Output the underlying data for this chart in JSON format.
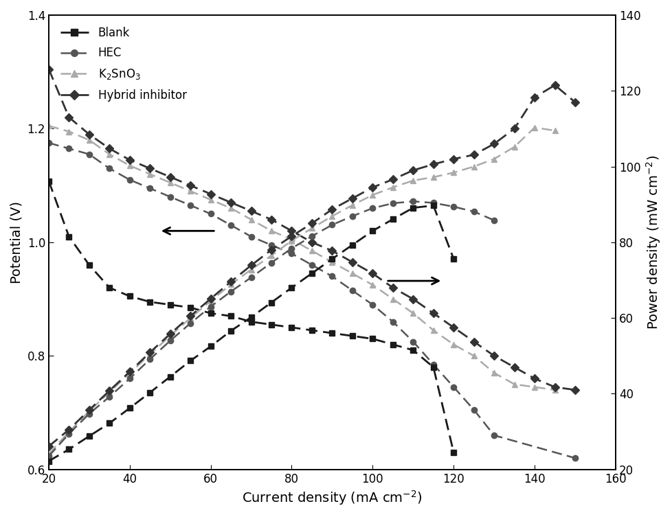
{
  "x": [
    20,
    25,
    30,
    35,
    40,
    45,
    50,
    55,
    60,
    65,
    70,
    75,
    80,
    85,
    90,
    95,
    100,
    105,
    110,
    115,
    120
  ],
  "blank_V": [
    1.108,
    1.01,
    0.96,
    0.92,
    0.905,
    0.895,
    0.89,
    0.885,
    0.875,
    0.87,
    0.86,
    0.855,
    0.85,
    0.845,
    0.84,
    0.835,
    0.83,
    0.82,
    0.81,
    0.78,
    0.63
  ],
  "x_hec": [
    20,
    25,
    30,
    35,
    40,
    45,
    50,
    55,
    60,
    65,
    70,
    75,
    80,
    85,
    90,
    95,
    100,
    105,
    110,
    115,
    120,
    125,
    130,
    150
  ],
  "hec_V": [
    1.175,
    1.165,
    1.155,
    1.13,
    1.11,
    1.095,
    1.08,
    1.065,
    1.05,
    1.03,
    1.01,
    0.995,
    0.98,
    0.96,
    0.94,
    0.915,
    0.89,
    0.86,
    0.825,
    0.785,
    0.745,
    0.705,
    0.66,
    0.62
  ],
  "x_k2sno3": [
    20,
    25,
    30,
    35,
    40,
    45,
    50,
    55,
    60,
    65,
    70,
    75,
    80,
    85,
    90,
    95,
    100,
    105,
    110,
    115,
    120,
    125,
    130,
    135,
    140,
    145
  ],
  "k2sno3_V": [
    1.205,
    1.195,
    1.18,
    1.155,
    1.135,
    1.12,
    1.105,
    1.09,
    1.075,
    1.06,
    1.04,
    1.02,
    1.005,
    0.985,
    0.965,
    0.945,
    0.925,
    0.9,
    0.875,
    0.845,
    0.82,
    0.8,
    0.77,
    0.75,
    0.745,
    0.74
  ],
  "x_hybrid": [
    20,
    25,
    30,
    35,
    40,
    45,
    50,
    55,
    60,
    65,
    70,
    75,
    80,
    85,
    90,
    95,
    100,
    105,
    110,
    115,
    120,
    125,
    130,
    135,
    140,
    145,
    150
  ],
  "hybrid_V": [
    1.305,
    1.22,
    1.19,
    1.165,
    1.145,
    1.13,
    1.115,
    1.1,
    1.085,
    1.07,
    1.055,
    1.04,
    1.02,
    1.0,
    0.985,
    0.965,
    0.945,
    0.92,
    0.9,
    0.875,
    0.85,
    0.825,
    0.8,
    0.78,
    0.76,
    0.745,
    0.74
  ],
  "x_blank_P": [
    20,
    25,
    30,
    35,
    40,
    45,
    50,
    55,
    60,
    65,
    70,
    75,
    80,
    85,
    90,
    95,
    100,
    105,
    110,
    115,
    120
  ],
  "blank_P_vals": [
    22.2,
    25.3,
    28.8,
    32.2,
    36.2,
    40.3,
    44.5,
    48.7,
    52.5,
    56.6,
    60.2,
    64.1,
    68.0,
    71.8,
    75.6,
    79.3,
    83.0,
    86.1,
    89.1,
    89.7,
    75.6
  ],
  "x_hec_P": [
    20,
    25,
    30,
    35,
    40,
    45,
    50,
    55,
    60,
    65,
    70,
    75,
    80,
    85,
    90,
    95,
    100,
    105,
    110,
    115,
    120,
    125,
    130,
    150
  ],
  "hec_P_vals": [
    23.5,
    29.4,
    34.7,
    39.2,
    44.0,
    49.1,
    54.0,
    58.6,
    63.0,
    67.0,
    70.7,
    74.6,
    78.4,
    81.6,
    84.6,
    86.9,
    89.0,
    90.3,
    90.8,
    90.4,
    89.4,
    88.1,
    85.8,
    97.4
  ],
  "x_k2sno3_P": [
    20,
    25,
    30,
    35,
    40,
    45,
    50,
    55,
    60,
    65,
    70,
    75,
    80,
    85,
    90,
    95,
    100,
    105,
    110,
    115,
    120,
    125,
    130,
    135,
    140,
    145
  ],
  "k2sno3_P_vals": [
    24.1,
    29.9,
    35.4,
    40.4,
    45.4,
    50.4,
    55.3,
    60.0,
    64.5,
    68.9,
    72.8,
    76.5,
    80.4,
    83.7,
    86.9,
    89.8,
    92.5,
    94.5,
    96.3,
    97.2,
    98.4,
    100.0,
    102.0,
    105.2,
    110.3,
    109.5
  ],
  "x_hybrid_P": [
    20,
    25,
    30,
    35,
    40,
    45,
    50,
    55,
    60,
    65,
    70,
    75,
    80,
    85,
    90,
    95,
    100,
    105,
    110,
    115,
    120,
    125,
    130,
    135,
    140,
    145,
    150
  ],
  "hybrid_P_vals": [
    26.1,
    30.5,
    35.7,
    40.8,
    45.8,
    50.9,
    55.8,
    60.5,
    65.1,
    69.6,
    73.9,
    78.0,
    81.6,
    85.0,
    88.7,
    91.6,
    94.5,
    96.6,
    99.0,
    100.6,
    102.0,
    103.1,
    106.0,
    110.0,
    118.3,
    121.5,
    117.0
  ],
  "xlim": [
    20,
    160
  ],
  "ylim_left": [
    0.6,
    1.4
  ],
  "ylim_right": [
    20,
    140
  ],
  "color_blank": "#1a1a1a",
  "color_hec": "#555555",
  "color_k2sno3": "#aaaaaa",
  "color_hybrid": "#333333",
  "xlabel": "Current density (mA cm$^{-2}$)",
  "ylabel_left": "Potential (V)",
  "ylabel_right": "Power density (mW cm$^{-2}$)",
  "legend_labels": [
    "Blank",
    "HEC",
    "K$_2$SnO$_3$",
    "Hybrid inhibitor"
  ]
}
